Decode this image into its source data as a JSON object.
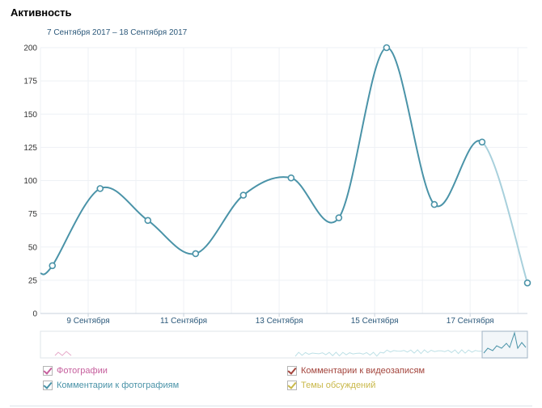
{
  "page": {
    "title": "Активность",
    "date_range": "7 Сентября 2017 – 18 Сентября 2017"
  },
  "legend": [
    {
      "label": "Фотографии",
      "color": "#c65f9d"
    },
    {
      "label": "Комментарии к видеозаписям",
      "color": "#a3443c"
    },
    {
      "label": "Комментарии к фотографиям",
      "color": "#4a93a8"
    },
    {
      "label": "Темы обсуждений",
      "color": "#c9b84a"
    }
  ],
  "chart_data": {
    "type": "line",
    "title": "",
    "xlabel": "",
    "ylabel": "",
    "ylim": [
      0,
      200
    ],
    "yticks": [
      0,
      25,
      50,
      75,
      100,
      125,
      150,
      175,
      200
    ],
    "xlim": [
      8,
      18.2
    ],
    "xticks": [
      {
        "x": 9,
        "label": "9 Сентября"
      },
      {
        "x": 11,
        "label": "11 Сентября"
      },
      {
        "x": 13,
        "label": "13 Сентября"
      },
      {
        "x": 15,
        "label": "15 Сентября"
      },
      {
        "x": 17,
        "label": "17 Сентября"
      }
    ],
    "series": [
      {
        "color": "#4a93a8",
        "points": [
          [
            8,
            30
          ],
          [
            8.25,
            36
          ],
          [
            9.25,
            94
          ],
          [
            10.25,
            70
          ],
          [
            11.25,
            45
          ],
          [
            12.25,
            89
          ],
          [
            13.25,
            102
          ],
          [
            14.25,
            72
          ],
          [
            15.25,
            200
          ],
          [
            16.25,
            82
          ],
          [
            17.25,
            129
          ],
          [
            18.2,
            23
          ]
        ],
        "marked_points": [
          1,
          2,
          3,
          4,
          5,
          6,
          7,
          8,
          9,
          10,
          11
        ],
        "faded_from_index": 10
      }
    ],
    "grid": true
  }
}
